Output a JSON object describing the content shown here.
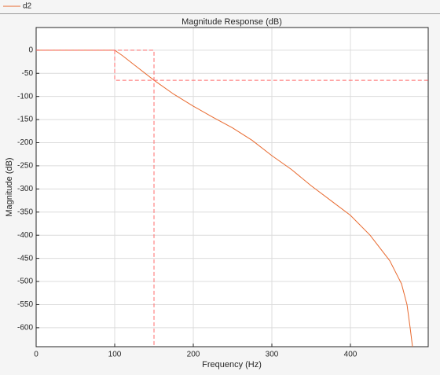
{
  "chart_data": {
    "type": "line",
    "title": "Magnitude Response (dB)",
    "x_label": "Frequency (Hz)",
    "y_label": "Magnitude (dB)",
    "xlim": [
      0,
      499
    ],
    "ylim": [
      -641,
      49
    ],
    "xticks": [
      0,
      100,
      200,
      300,
      400
    ],
    "yticks": [
      0,
      -50,
      -100,
      -150,
      -200,
      -250,
      -300,
      -350,
      -400,
      -450,
      -500,
      -550,
      -600
    ],
    "grid": true,
    "series": [
      {
        "name": "d2",
        "color": "#e8692e",
        "dashed": false,
        "x": [
          0,
          100,
          110,
          125,
          150,
          175,
          200,
          225,
          250,
          275,
          300,
          325,
          350,
          375,
          400,
          425,
          450,
          465,
          472,
          476,
          479
        ],
        "values": [
          0,
          0,
          -12,
          -32,
          -65,
          -95,
          -121,
          -145,
          -168,
          -195,
          -228,
          -258,
          -293,
          -325,
          -357,
          -400,
          -455,
          -505,
          -550,
          -600,
          -641
        ]
      },
      {
        "color": "#ff6b6b",
        "dashed": true,
        "x": [
          0,
          150,
          150,
          null,
          100,
          100,
          499
        ],
        "values": [
          0,
          0,
          -641,
          null,
          0,
          -65,
          -65
        ]
      }
    ]
  }
}
